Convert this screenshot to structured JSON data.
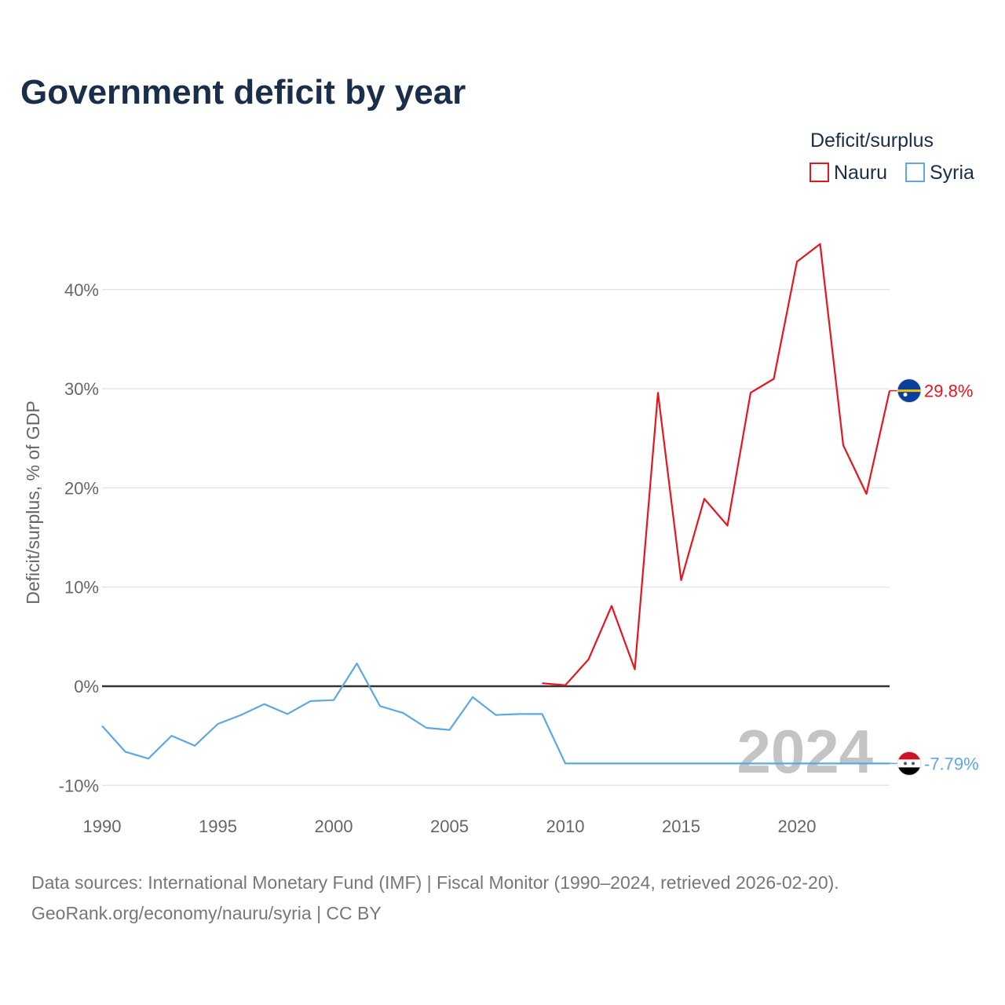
{
  "chart_data": {
    "type": "line",
    "title": "Government deficit by year",
    "ylabel": "Deficit/surplus, % of GDP",
    "xlabel": "",
    "xlim": [
      1990,
      2024
    ],
    "ylim": [
      -10,
      45
    ],
    "x_ticks": [
      1990,
      1995,
      2000,
      2005,
      2010,
      2015,
      2020
    ],
    "y_ticks": [
      -10,
      0,
      10,
      20,
      30,
      40
    ],
    "x_tick_labels": [
      "1990",
      "1995",
      "2000",
      "2005",
      "2010",
      "2015",
      "2020"
    ],
    "y_tick_labels": [
      "-10%",
      "0%",
      "10%",
      "20%",
      "30%",
      "40%"
    ],
    "legend": {
      "title": "Deficit/surplus",
      "placement": "top-right",
      "entries": [
        "Nauru",
        "Syria"
      ]
    },
    "year_watermark": "2024",
    "series": [
      {
        "name": "Nauru",
        "color": "#e8141e",
        "end_label": "29.8%",
        "flag": "nauru-flag",
        "x": [
          2009,
          2010,
          2011,
          2012,
          2013,
          2014,
          2015,
          2016,
          2017,
          2018,
          2019,
          2020,
          2021,
          2022,
          2023,
          2024
        ],
        "values": [
          0.3,
          0.1,
          2.7,
          8.1,
          1.7,
          29.6,
          10.7,
          18.9,
          16.2,
          29.6,
          31.0,
          42.8,
          44.6,
          24.3,
          19.4,
          29.8
        ]
      },
      {
        "name": "Syria",
        "color": "#5ca8e6",
        "end_label": "-7.79%",
        "flag": "syria-flag",
        "x": [
          1990,
          1991,
          1992,
          1993,
          1994,
          1995,
          1996,
          1997,
          1998,
          1999,
          2000,
          2001,
          2002,
          2003,
          2004,
          2005,
          2006,
          2007,
          2008,
          2009,
          2010,
          2011,
          2012,
          2013,
          2014,
          2015,
          2016,
          2017,
          2018,
          2019,
          2020,
          2021,
          2022,
          2023,
          2024
        ],
        "values": [
          -4.0,
          -6.6,
          -7.3,
          -5.0,
          -6.0,
          -3.8,
          -2.9,
          -1.8,
          -2.8,
          -1.5,
          -1.4,
          2.3,
          -2.0,
          -2.7,
          -4.2,
          -4.4,
          -1.1,
          -2.9,
          -2.8,
          -2.8,
          -7.79,
          -7.79,
          -7.79,
          -7.79,
          -7.79,
          -7.79,
          -7.79,
          -7.79,
          -7.79,
          -7.79,
          -7.79,
          -7.79,
          -7.79,
          -7.79,
          -7.79
        ]
      }
    ]
  },
  "source": {
    "line1": "Data sources: International Monetary Fund (IMF) | Fiscal Monitor (1990–2024, retrieved 2026-02-20).",
    "line2": "GeoRank.org/economy/nauru/syria | CC BY"
  }
}
